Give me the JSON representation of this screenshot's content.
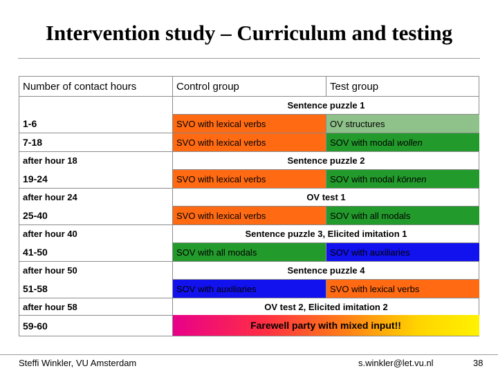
{
  "title": "Intervention study – Curriculum and testing",
  "header": {
    "hours": "Number of contact hours",
    "control": "Control group",
    "test": "Test group"
  },
  "rows": {
    "sp1": "Sentence puzzle 1",
    "r1": {
      "hours": "1-6",
      "control": "SVO with lexical verbs",
      "test": "OV structures"
    },
    "r2": {
      "hours": "7-18",
      "control": "SVO with lexical verbs",
      "test_prefix": "SOV with modal ",
      "test_italic": "wollen"
    },
    "after18": "after hour 18",
    "sp2": "Sentence puzzle 2",
    "r3": {
      "hours": "19-24",
      "control": "SVO with lexical verbs",
      "test_prefix": "SOV with modal ",
      "test_italic": "können"
    },
    "after24": "after hour 24",
    "ovtest1": "OV test 1",
    "r4": {
      "hours": "25-40",
      "control": "SVO with lexical verbs",
      "test": "SOV with all modals"
    },
    "after40": "after hour 40",
    "sp3": "Sentence puzzle 3, Elicited imitation 1",
    "r5": {
      "hours": "41-50",
      "control": "SOV with all modals",
      "test": "SOV with auxiliaries"
    },
    "after50": "after hour 50",
    "sp4": "Sentence puzzle 4",
    "r6": {
      "hours": "51-58",
      "control": "SOV with auxiliaries",
      "test": "SVO with lexical verbs"
    },
    "after58": "after hour 58",
    "ovtest2": "OV test 2, Elicited imitation 2",
    "r7": {
      "hours": "59-60",
      "party": "Farewell party with mixed input!!"
    }
  },
  "colors": {
    "orange": "#ff6a13",
    "light_green": "#8fc28a",
    "green": "#239a2c",
    "blue": "#1212ee"
  },
  "footer": {
    "author": "Steffi Winkler, VU Amsterdam",
    "email": "s.winkler@let.vu.nl",
    "page": "38"
  }
}
